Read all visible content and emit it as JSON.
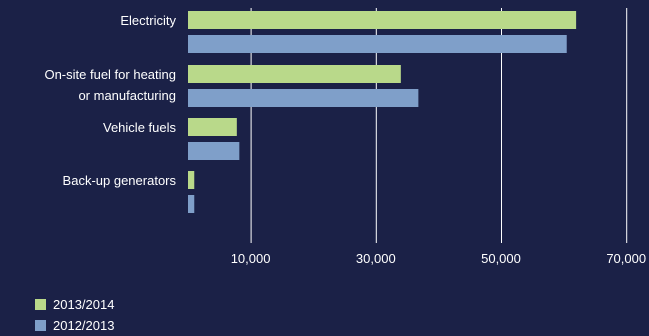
{
  "chart_data": {
    "type": "bar",
    "orientation": "horizontal",
    "categories": [
      [
        "Electricity"
      ],
      [
        "On-site fuel for heating",
        "or manufacturing"
      ],
      [
        "Vehicle fuels"
      ],
      [
        "Back-up generators"
      ]
    ],
    "series": [
      {
        "name": "2013/2014",
        "color": "#b9d98a",
        "values": [
          62000,
          34000,
          7800,
          1000
        ]
      },
      {
        "name": "2012/2013",
        "color": "#7f9fc9",
        "values": [
          60500,
          36800,
          8200,
          1000
        ]
      }
    ],
    "x_ticks": [
      10000,
      30000,
      50000,
      70000
    ],
    "x_tick_labels": [
      "10,000",
      "30,000",
      "50,000",
      "70,000"
    ],
    "x_range": [
      0,
      70000
    ],
    "grid": true,
    "legend_position": "bottom-left",
    "title": "",
    "xlabel": "",
    "ylabel": ""
  }
}
